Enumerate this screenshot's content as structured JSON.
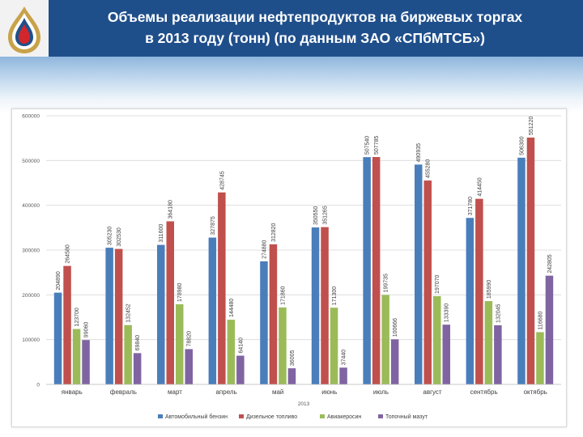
{
  "header": {
    "title_line1": "Объемы реализации нефтепродуктов на биржевых торгах",
    "title_line2": "в 2013 году (тонн) (по данным ЗАО «СПбМТСБ»)"
  },
  "logo": {
    "icon": "flame-drop-logo-icon"
  },
  "colors": {
    "header_bg": "#1f4f8b",
    "title_text": "#ffffff"
  },
  "chart_data": {
    "type": "bar",
    "categories": [
      "январь",
      "февраль",
      "март",
      "апрель",
      "май",
      "июнь",
      "июль",
      "август",
      "сентябрь",
      "октябрь"
    ],
    "xlabel": "2013",
    "ylabel": "",
    "ylim": [
      0,
      600000
    ],
    "yticks": [
      "0",
      "100000",
      "200000",
      "300000",
      "400000",
      "500000",
      "600000"
    ],
    "grid": true,
    "legend_position": "bottom",
    "series": [
      {
        "name": "Автомобильный бензин",
        "color": "#4a7ebb",
        "values": [
          204890,
          305230,
          311600,
          327875,
          274880,
          350550,
          507540,
          490935,
          371780,
          506300
        ],
        "labels": [
          "204890",
          "305230",
          "311600",
          "327875",
          "274880",
          "350550",
          "507540",
          "490935",
          "371780",
          "506300"
        ]
      },
      {
        "name": "Дизельное топливо",
        "color": "#c0504d",
        "values": [
          264580,
          302530,
          364180,
          428745,
          312820,
          351265,
          507785,
          455280,
          414450,
          551220
        ],
        "labels": [
          "264580",
          "302530",
          "364180",
          "428745",
          "312820",
          "351265",
          "507785",
          "455280",
          "414450",
          "551220"
        ]
      },
      {
        "name": "Авиакеросин",
        "color": "#9bbb59",
        "values": [
          123700,
          132452,
          178980,
          144480,
          171860,
          171300,
          199735,
          197070,
          185990,
          116680
        ],
        "labels": [
          "123700",
          "132452",
          "178980",
          "144480",
          "171860",
          "171300",
          "199735",
          "197070",
          "185990",
          "116680"
        ]
      },
      {
        "name": "Топочный мазут",
        "color": "#8064a2",
        "values": [
          99060,
          69840,
          78820,
          64140,
          36005,
          37440,
          100666,
          133390,
          132045,
          242805
        ],
        "labels": [
          "99060",
          "69840",
          "78820",
          "64140",
          "36005",
          "37440",
          "100666",
          "133390",
          "132045",
          "242805"
        ]
      }
    ]
  }
}
